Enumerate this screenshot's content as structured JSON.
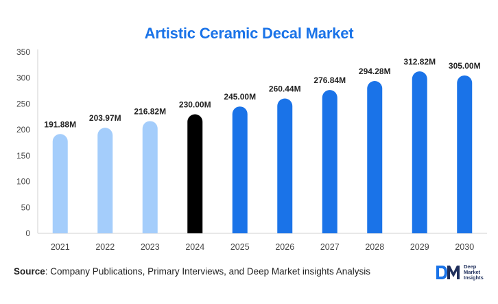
{
  "chart_data": {
    "type": "bar",
    "title": "Artistic Ceramic Decal Market",
    "categories": [
      "2021",
      "2022",
      "2023",
      "2024",
      "2025",
      "2026",
      "2027",
      "2028",
      "2029",
      "2030"
    ],
    "values": [
      191.88,
      203.97,
      216.82,
      230.0,
      245.0,
      260.44,
      276.84,
      294.28,
      312.82,
      305.0
    ],
    "data_labels": [
      "191.88M",
      "203.97M",
      "216.82M",
      "230.00M",
      "245.00M",
      "260.44M",
      "276.84M",
      "294.28M",
      "312.82M",
      "305.00M"
    ],
    "bar_colors": [
      "#a4cdfb",
      "#a4cdfb",
      "#a4cdfb",
      "#000000",
      "#1a73e8",
      "#1a73e8",
      "#1a73e8",
      "#1a73e8",
      "#1a73e8",
      "#1a73e8"
    ],
    "ylim": [
      0,
      350
    ],
    "yticks": [
      "0",
      "50",
      "100",
      "150",
      "200",
      "250",
      "300",
      "350"
    ],
    "xlabel": "",
    "ylabel": "",
    "grid": false,
    "legend": "none"
  },
  "footer": {
    "source_label": "Source",
    "source_text": ": Company Publications, Primary Interviews, and Deep Market insights Analysis"
  },
  "logo": {
    "mark": "DM",
    "line1": "Deep",
    "line2": "Market",
    "line3": "Insights",
    "color": "#1a73e8"
  }
}
